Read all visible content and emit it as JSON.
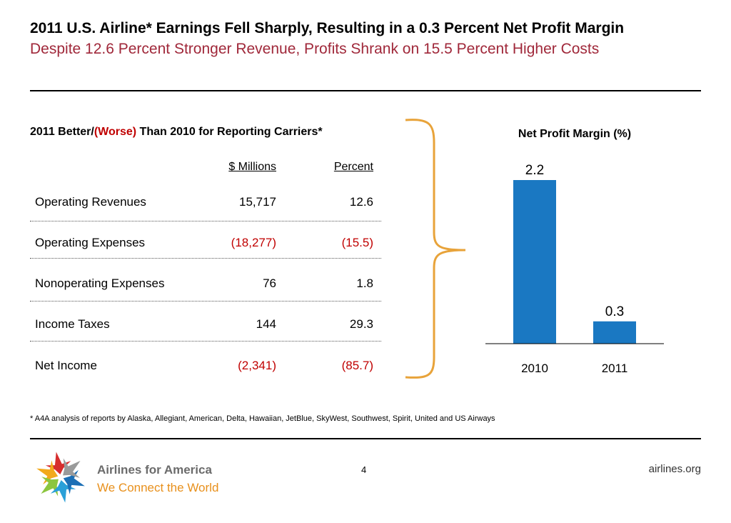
{
  "header": {
    "title": "2011 U.S. Airline* Earnings Fell Sharply, Resulting in a 0.3 Percent Net Profit Margin",
    "subtitle": "Despite 12.6 Percent Stronger Revenue, Profits Shrank on 15.5 Percent Higher Costs"
  },
  "table": {
    "heading_pre": "2011 Better/",
    "heading_worse": "(Worse)",
    "heading_post": " Than 2010 for Reporting Carriers*",
    "col_millions": "$ Millions",
    "col_percent": "Percent",
    "rows": [
      {
        "label": "Operating Revenues",
        "millions": "15,717",
        "percent": "12.6"
      },
      {
        "label": "Operating Expenses",
        "millions": "(18,277)",
        "percent": "(15.5)"
      },
      {
        "label": "Nonoperating Expenses",
        "millions": "76",
        "percent": "1.8"
      },
      {
        "label": "Income Taxes",
        "millions": "144",
        "percent": "29.3"
      },
      {
        "label": "Net Income",
        "millions": "(2,341)",
        "percent": "(85.7)"
      }
    ]
  },
  "chart_data": {
    "type": "bar",
    "title": "Net Profit Margin (%)",
    "categories": [
      "2010",
      "2011"
    ],
    "values": [
      2.2,
      0.3
    ],
    "data_labels": [
      "2.2",
      "0.3"
    ],
    "ylim": [
      0,
      2.2
    ],
    "grid": false,
    "legend": "none",
    "bar_color": "#1a78c2"
  },
  "footnote": "* A4A analysis of reports by Alaska, Allegiant, American, Delta, Hawaiian, JetBlue, SkyWest, Southwest, Spirit, United and US Airways",
  "footer": {
    "brand_line1": "Airlines for America",
    "brand_line2": "We Connect the World",
    "page_number": "4",
    "website": "airlines.org"
  },
  "colors": {
    "subtitle": "#a0283a",
    "negative": "#c00000",
    "brace": "#e8a33a",
    "brand_orange": "#e8901c"
  }
}
